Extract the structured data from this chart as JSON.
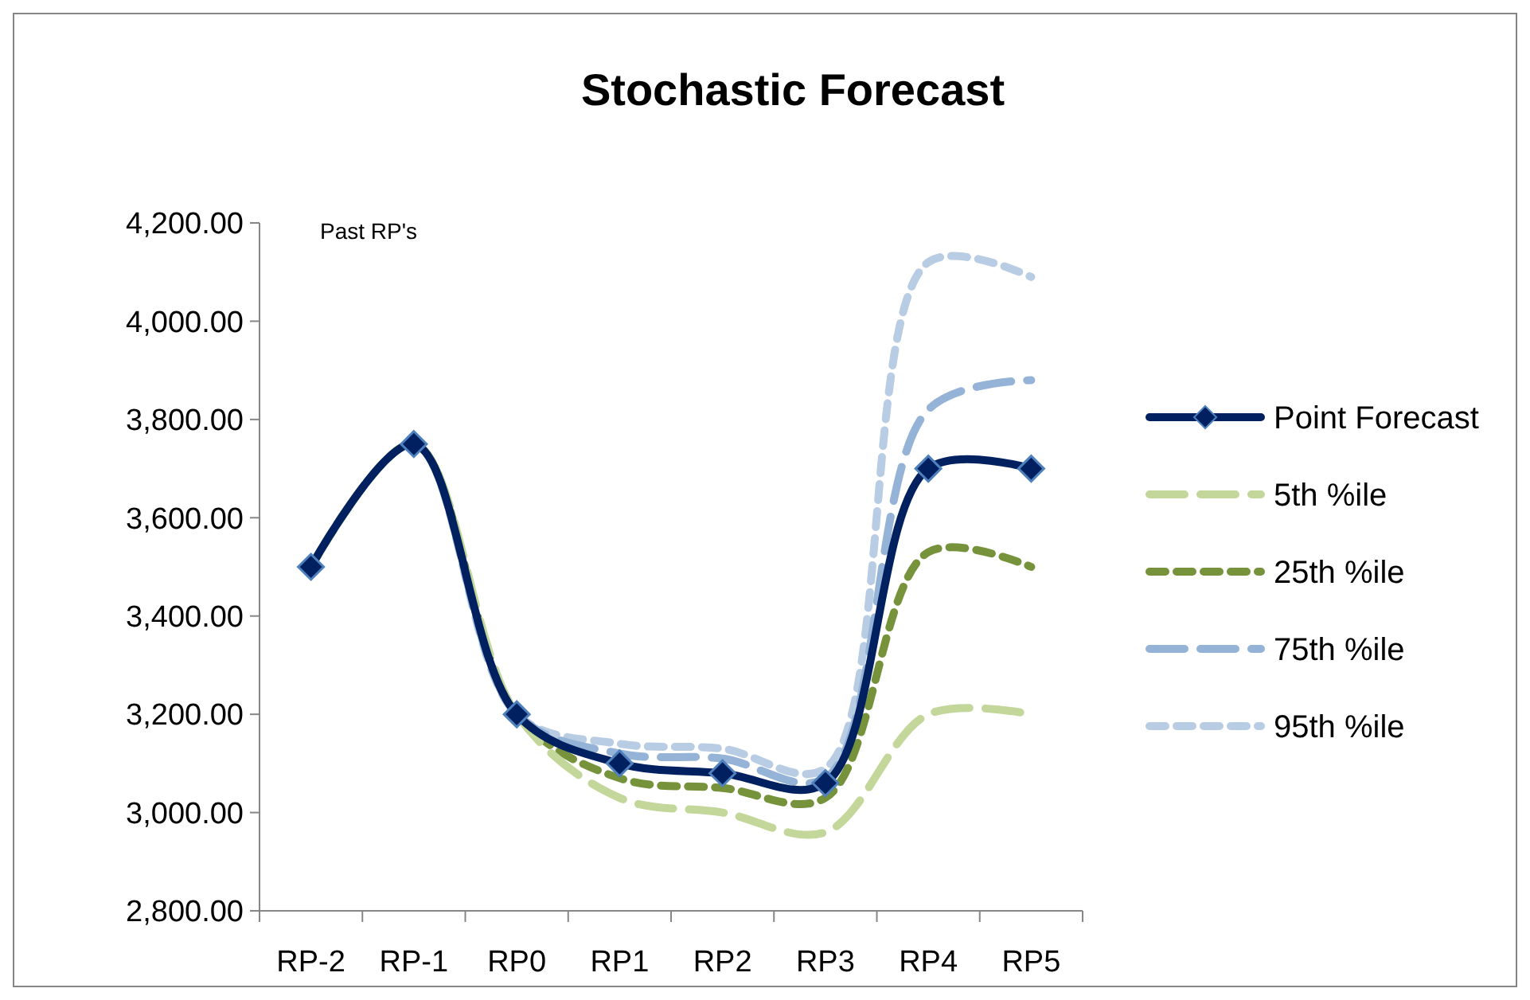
{
  "chart_data": {
    "type": "line",
    "title": "Stochastic Forecast",
    "categories": [
      "RP-2",
      "RP-1",
      "RP0",
      "RP1",
      "RP2",
      "RP3",
      "RP4",
      "RP5"
    ],
    "series": [
      {
        "name": "Point Forecast",
        "color": "#002060",
        "values": [
          3500,
          3750,
          3200,
          3100,
          3080,
          3060,
          3700,
          3700
        ],
        "marker": "diamond",
        "line_style": "solid"
      },
      {
        "name": "5th %ile",
        "color": "#c4d79b",
        "values": [
          3500,
          3750,
          3200,
          3030,
          3000,
          2960,
          3200,
          3200
        ],
        "marker": "none",
        "line_style": "dashed"
      },
      {
        "name": "25th %ile",
        "color": "#76933c",
        "values": [
          3500,
          3750,
          3200,
          3070,
          3050,
          3030,
          3530,
          3500
        ],
        "marker": "none",
        "line_style": "dashed"
      },
      {
        "name": "75th %ile",
        "color": "#95b3d7",
        "values": [
          3500,
          3750,
          3200,
          3120,
          3110,
          3070,
          3820,
          3880
        ],
        "marker": "none",
        "line_style": "dashed"
      },
      {
        "name": "95th %ile",
        "color": "#b8cce4",
        "values": [
          3500,
          3750,
          3200,
          3140,
          3130,
          3090,
          4120,
          4090
        ],
        "marker": "none",
        "line_style": "dashed"
      }
    ],
    "ylim": [
      2800,
      4200
    ],
    "yticks": [
      {
        "value": 2800,
        "label": "2,800.00"
      },
      {
        "value": 3000,
        "label": "3,000.00"
      },
      {
        "value": 3200,
        "label": "3,200.00"
      },
      {
        "value": 3400,
        "label": "3,400.00"
      },
      {
        "value": 3600,
        "label": "3,600.00"
      },
      {
        "value": 3800,
        "label": "3,800.00"
      },
      {
        "value": 4000,
        "label": "4,000.00"
      },
      {
        "value": 4200,
        "label": "4,200.00"
      }
    ],
    "annotations": [
      "Past RP's"
    ],
    "grid": false,
    "legend": "right"
  }
}
